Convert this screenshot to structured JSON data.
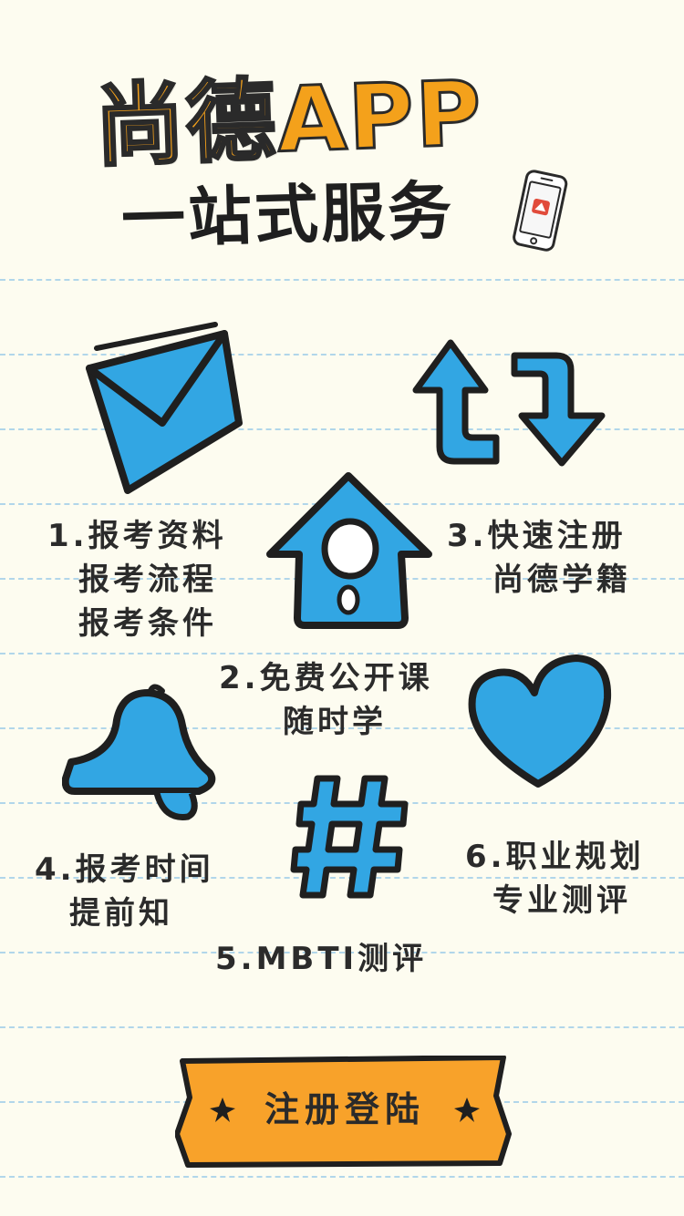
{
  "header": {
    "title": "尚德APP",
    "subtitle": "一站式服务"
  },
  "features": {
    "f1": {
      "lines": [
        "1.报考资料",
        "报考流程",
        "报考条件"
      ]
    },
    "f2": {
      "lines": [
        "2.免费公开课",
        "随时学"
      ]
    },
    "f3": {
      "lines": [
        "3.快速注册",
        "尚德学籍"
      ]
    },
    "f4": {
      "lines": [
        "4.报考时间",
        "提前知"
      ]
    },
    "f5": {
      "lines": [
        "5.MBTI测评"
      ]
    },
    "f6": {
      "lines": [
        "6.职业规划",
        "专业测评"
      ]
    }
  },
  "cta": {
    "label": "注册登陆"
  },
  "icons": {
    "envelope": "envelope-icon",
    "arrows": "swap-arrows-icon",
    "house": "house-icon",
    "bell": "bell-icon",
    "heart": "heart-icon",
    "hashtag": "hashtag-icon",
    "phone": "phone-icon"
  },
  "colors": {
    "background": "#fdfcf0",
    "accent_blue": "#32a6e3",
    "title_orange": "#f4a11b",
    "banner_orange": "#f8a22a",
    "line_blue": "#a9d2ea",
    "ink": "#1f1f1f"
  }
}
